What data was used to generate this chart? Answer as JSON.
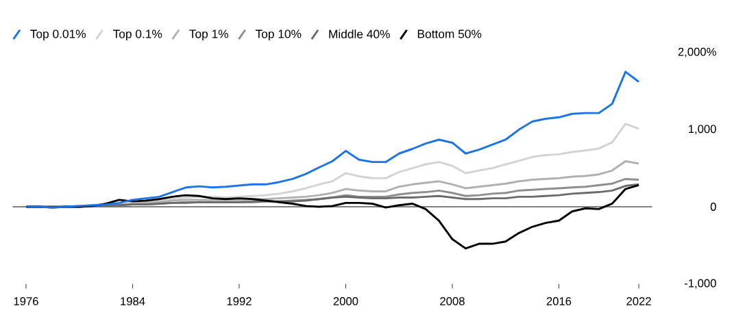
{
  "chart_data": {
    "type": "line",
    "x": [
      1976,
      1977,
      1978,
      1979,
      1980,
      1981,
      1982,
      1983,
      1984,
      1985,
      1986,
      1987,
      1988,
      1989,
      1990,
      1991,
      1992,
      1993,
      1994,
      1995,
      1996,
      1997,
      1998,
      1999,
      2000,
      2001,
      2002,
      2003,
      2004,
      2005,
      2006,
      2007,
      2008,
      2009,
      2010,
      2011,
      2012,
      2013,
      2014,
      2015,
      2016,
      2017,
      2018,
      2019,
      2020,
      2021,
      2022
    ],
    "series": [
      {
        "name": "Top 0.01%",
        "color": "#1a73e8",
        "values": [
          0,
          0,
          -10,
          0,
          10,
          20,
          30,
          50,
          90,
          110,
          130,
          190,
          250,
          265,
          250,
          260,
          275,
          290,
          290,
          320,
          360,
          425,
          510,
          590,
          725,
          610,
          580,
          580,
          690,
          750,
          820,
          870,
          830,
          690,
          740,
          805,
          870,
          1000,
          1105,
          1140,
          1160,
          1205,
          1215,
          1215,
          1335,
          1750,
          1620
        ]
      },
      {
        "name": "Top 0.1%",
        "color": "#d3d3d3",
        "values": [
          0,
          0,
          0,
          10,
          10,
          20,
          20,
          30,
          40,
          60,
          80,
          100,
          120,
          130,
          130,
          120,
          130,
          140,
          150,
          170,
          200,
          240,
          290,
          330,
          435,
          395,
          370,
          370,
          450,
          500,
          550,
          580,
          530,
          435,
          470,
          500,
          550,
          595,
          645,
          670,
          680,
          710,
          730,
          755,
          835,
          1075,
          1010
        ]
      },
      {
        "name": "Top 1%",
        "color": "#b0b0b0",
        "values": [
          0,
          0,
          0,
          0,
          10,
          10,
          20,
          30,
          40,
          50,
          60,
          80,
          90,
          90,
          90,
          90,
          90,
          100,
          100,
          110,
          120,
          130,
          150,
          180,
          230,
          210,
          200,
          200,
          260,
          290,
          310,
          330,
          290,
          240,
          260,
          280,
          300,
          330,
          350,
          360,
          370,
          390,
          400,
          420,
          470,
          590,
          560
        ]
      },
      {
        "name": "Top 10%",
        "color": "#8e8e8e",
        "values": [
          0,
          0,
          0,
          0,
          0,
          10,
          10,
          20,
          30,
          30,
          40,
          50,
          60,
          60,
          60,
          60,
          60,
          70,
          70,
          70,
          80,
          90,
          100,
          120,
          150,
          130,
          130,
          130,
          160,
          180,
          190,
          210,
          180,
          140,
          150,
          170,
          180,
          210,
          220,
          230,
          240,
          250,
          260,
          280,
          300,
          360,
          350
        ]
      },
      {
        "name": "Middle 40%",
        "color": "#6b6b6b",
        "values": [
          0,
          0,
          0,
          0,
          0,
          10,
          10,
          20,
          30,
          30,
          40,
          50,
          50,
          60,
          60,
          60,
          60,
          60,
          70,
          70,
          70,
          80,
          100,
          120,
          130,
          120,
          110,
          110,
          120,
          120,
          130,
          140,
          120,
          100,
          100,
          110,
          110,
          130,
          130,
          140,
          150,
          170,
          180,
          190,
          210,
          270,
          290
        ]
      },
      {
        "name": "Bottom 50%",
        "color": "#000000",
        "values": [
          0,
          0,
          -10,
          0,
          0,
          10,
          40,
          90,
          70,
          80,
          100,
          130,
          150,
          140,
          110,
          100,
          110,
          100,
          80,
          60,
          40,
          10,
          0,
          10,
          50,
          50,
          40,
          -10,
          20,
          40,
          -30,
          -180,
          -420,
          -540,
          -480,
          -480,
          -450,
          -340,
          -260,
          -210,
          -180,
          -60,
          -20,
          -30,
          40,
          230,
          280
        ]
      }
    ],
    "xlim": [
      1975,
      2023
    ],
    "xticks": [
      1976,
      1984,
      1992,
      2000,
      2008,
      2016,
      2022
    ],
    "ylim": [
      -1000,
      2000
    ],
    "yticks": [
      {
        "value": -1000,
        "label": "-1,000"
      },
      0,
      {
        "value": 1000,
        "label": "1,000"
      },
      {
        "value": 2000,
        "label": "2,000%"
      }
    ],
    "ref_lines": [
      {
        "axis": "y",
        "value": 0,
        "color": "#000000"
      }
    ],
    "legend": "top left",
    "grid": false,
    "line_style": "solid",
    "marker": "none"
  }
}
